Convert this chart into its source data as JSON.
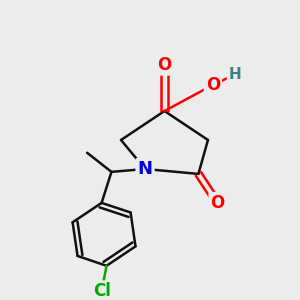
{
  "background_color": "#ececec",
  "atom_colors": {
    "O": "#ff0000",
    "N": "#0000dd",
    "C": "#111111",
    "Cl": "#00aa00",
    "H": "#3d8080"
  },
  "bond_color": "#111111",
  "bond_width": 1.8,
  "figsize": [
    3.0,
    3.0
  ],
  "dpi": 100,
  "xlim": [
    0,
    10
  ],
  "ylim": [
    0,
    10
  ]
}
